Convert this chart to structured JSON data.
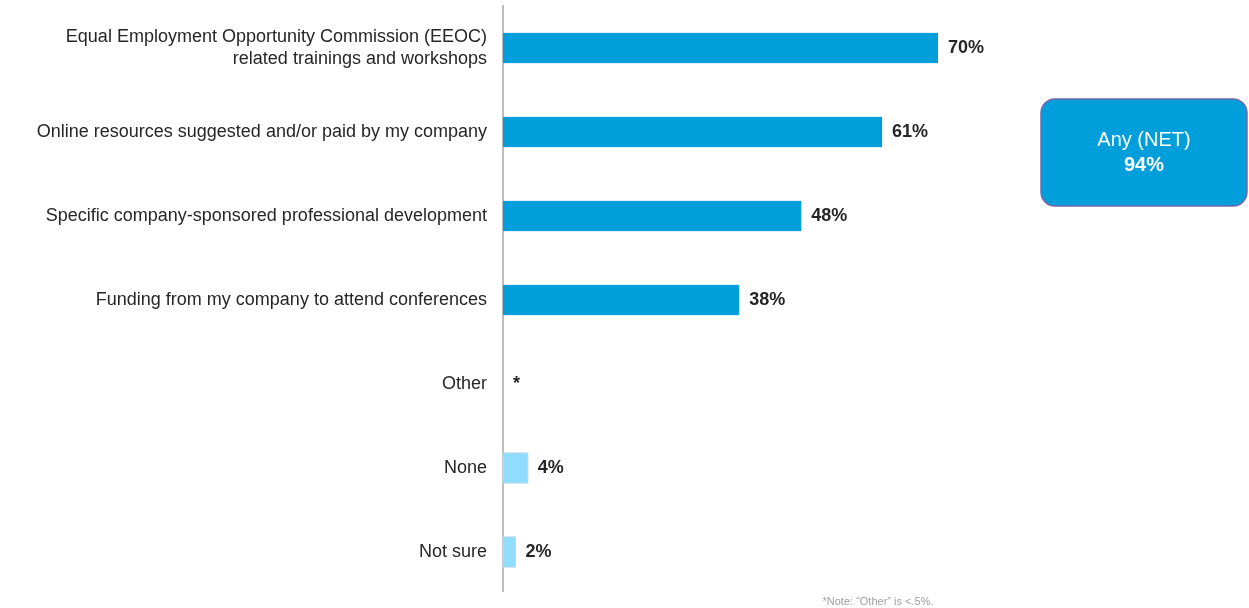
{
  "chart_data": {
    "type": "bar",
    "orientation": "horizontal",
    "categories": [
      "Equal Employment Opportunity Commission (EEOC)\nrelated trainings and workshops",
      "Online resources suggested and/or paid by my company",
      "Specific company-sponsored professional development",
      "Funding from my company to attend conferences",
      "Other",
      "None",
      "Not sure"
    ],
    "values": [
      70,
      61,
      48,
      38,
      null,
      4,
      2
    ],
    "colors": [
      "#009fdb",
      "#009fdb",
      "#009fdb",
      "#009fdb",
      null,
      "#8fdcff",
      "#8fdcff"
    ],
    "value_labels": [
      "70%",
      "61%",
      "48%",
      "38%",
      "*",
      "4%",
      "2%"
    ],
    "annotations": [
      "Any (NET)\n94%",
      "*Note: “Other” is <.5%."
    ]
  }
}
